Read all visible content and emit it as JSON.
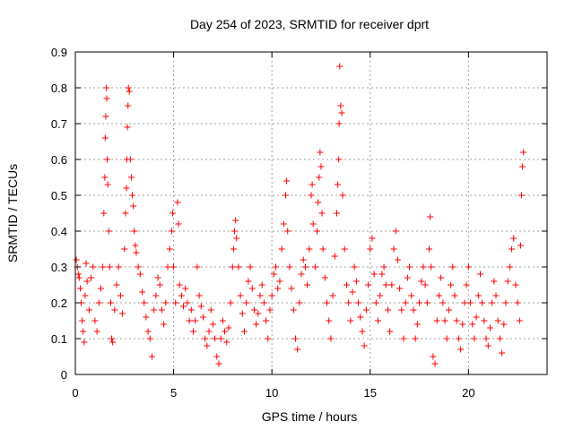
{
  "chart_data": {
    "type": "scatter",
    "title": "Day 254 of 2023, SRMTID for receiver dprt",
    "xlabel": "GPS time / hours",
    "ylabel": "SRMTID / TECUs",
    "xlim": [
      0,
      24
    ],
    "ylim": [
      0,
      0.9
    ],
    "x_ticks": [
      0,
      5,
      10,
      15,
      20
    ],
    "x_tick_labels": [
      "0",
      "5",
      "10",
      "15",
      "20"
    ],
    "y_ticks": [
      0,
      0.1,
      0.2,
      0.3,
      0.4,
      0.5,
      0.6,
      0.7,
      0.8,
      0.9
    ],
    "y_tick_labels": [
      "0",
      "0.1",
      "0.2",
      "0.3",
      "0.4",
      "0.5",
      "0.6",
      "0.7",
      "0.8",
      "0.9"
    ],
    "grid": true,
    "marker": "+",
    "color": "#ff0000",
    "series": [
      {
        "name": "SRMTID",
        "points": [
          [
            0.05,
            0.32
          ],
          [
            0.1,
            0.3
          ],
          [
            0.15,
            0.28
          ],
          [
            0.2,
            0.27
          ],
          [
            0.25,
            0.24
          ],
          [
            0.3,
            0.2
          ],
          [
            0.35,
            0.15
          ],
          [
            0.4,
            0.12
          ],
          [
            0.45,
            0.09
          ],
          [
            0.5,
            0.22
          ],
          [
            0.55,
            0.31
          ],
          [
            0.6,
            0.26
          ],
          [
            0.7,
            0.18
          ],
          [
            0.8,
            0.27
          ],
          [
            0.9,
            0.3
          ],
          [
            1.0,
            0.15
          ],
          [
            1.1,
            0.12
          ],
          [
            1.2,
            0.2
          ],
          [
            1.3,
            0.24
          ],
          [
            1.4,
            0.3
          ],
          [
            1.45,
            0.45
          ],
          [
            1.5,
            0.55
          ],
          [
            1.52,
            0.66
          ],
          [
            1.55,
            0.72
          ],
          [
            1.58,
            0.8
          ],
          [
            1.6,
            0.77
          ],
          [
            1.62,
            0.6
          ],
          [
            1.65,
            0.53
          ],
          [
            1.7,
            0.4
          ],
          [
            1.75,
            0.3
          ],
          [
            1.8,
            0.2
          ],
          [
            1.85,
            0.1
          ],
          [
            1.9,
            0.09
          ],
          [
            2.0,
            0.18
          ],
          [
            2.1,
            0.25
          ],
          [
            2.2,
            0.3
          ],
          [
            2.3,
            0.22
          ],
          [
            2.4,
            0.17
          ],
          [
            2.5,
            0.35
          ],
          [
            2.55,
            0.45
          ],
          [
            2.6,
            0.52
          ],
          [
            2.62,
            0.6
          ],
          [
            2.65,
            0.69
          ],
          [
            2.68,
            0.75
          ],
          [
            2.7,
            0.8
          ],
          [
            2.75,
            0.79
          ],
          [
            2.8,
            0.6
          ],
          [
            2.85,
            0.55
          ],
          [
            2.9,
            0.5
          ],
          [
            2.95,
            0.47
          ],
          [
            3.0,
            0.4
          ],
          [
            3.05,
            0.36
          ],
          [
            3.1,
            0.34
          ],
          [
            3.2,
            0.3
          ],
          [
            3.3,
            0.28
          ],
          [
            3.4,
            0.23
          ],
          [
            3.5,
            0.2
          ],
          [
            3.6,
            0.16
          ],
          [
            3.7,
            0.12
          ],
          [
            3.8,
            0.1
          ],
          [
            3.9,
            0.05
          ],
          [
            4.0,
            0.18
          ],
          [
            4.1,
            0.22
          ],
          [
            4.2,
            0.27
          ],
          [
            4.3,
            0.25
          ],
          [
            4.4,
            0.18
          ],
          [
            4.5,
            0.14
          ],
          [
            4.6,
            0.2
          ],
          [
            4.7,
            0.3
          ],
          [
            4.8,
            0.35
          ],
          [
            4.9,
            0.4
          ],
          [
            4.95,
            0.45
          ],
          [
            5.0,
            0.3
          ],
          [
            5.1,
            0.2
          ],
          [
            5.2,
            0.48
          ],
          [
            5.25,
            0.42
          ],
          [
            5.3,
            0.25
          ],
          [
            5.4,
            0.22
          ],
          [
            5.5,
            0.19
          ],
          [
            5.6,
            0.24
          ],
          [
            5.7,
            0.2
          ],
          [
            5.8,
            0.15
          ],
          [
            5.9,
            0.18
          ],
          [
            6.0,
            0.12
          ],
          [
            6.1,
            0.15
          ],
          [
            6.2,
            0.3
          ],
          [
            6.3,
            0.22
          ],
          [
            6.4,
            0.19
          ],
          [
            6.5,
            0.16
          ],
          [
            6.6,
            0.1
          ],
          [
            6.7,
            0.08
          ],
          [
            6.8,
            0.12
          ],
          [
            6.9,
            0.18
          ],
          [
            7.0,
            0.14
          ],
          [
            7.1,
            0.1
          ],
          [
            7.2,
            0.05
          ],
          [
            7.3,
            0.03
          ],
          [
            7.4,
            0.1
          ],
          [
            7.5,
            0.15
          ],
          [
            7.6,
            0.12
          ],
          [
            7.7,
            0.09
          ],
          [
            7.8,
            0.13
          ],
          [
            7.9,
            0.2
          ],
          [
            8.0,
            0.3
          ],
          [
            8.05,
            0.35
          ],
          [
            8.1,
            0.4
          ],
          [
            8.15,
            0.43
          ],
          [
            8.2,
            0.38
          ],
          [
            8.3,
            0.3
          ],
          [
            8.4,
            0.22
          ],
          [
            8.5,
            0.17
          ],
          [
            8.6,
            0.12
          ],
          [
            8.7,
            0.2
          ],
          [
            8.8,
            0.26
          ],
          [
            8.9,
            0.3
          ],
          [
            9.0,
            0.24
          ],
          [
            9.1,
            0.18
          ],
          [
            9.2,
            0.14
          ],
          [
            9.3,
            0.17
          ],
          [
            9.4,
            0.22
          ],
          [
            9.5,
            0.25
          ],
          [
            9.6,
            0.2
          ],
          [
            9.7,
            0.15
          ],
          [
            9.8,
            0.1
          ],
          [
            9.9,
            0.18
          ],
          [
            10.0,
            0.22
          ],
          [
            10.1,
            0.28
          ],
          [
            10.2,
            0.3
          ],
          [
            10.3,
            0.24
          ],
          [
            10.4,
            0.26
          ],
          [
            10.5,
            0.35
          ],
          [
            10.6,
            0.42
          ],
          [
            10.7,
            0.5
          ],
          [
            10.75,
            0.54
          ],
          [
            10.8,
            0.4
          ],
          [
            10.9,
            0.3
          ],
          [
            11.0,
            0.24
          ],
          [
            11.1,
            0.18
          ],
          [
            11.2,
            0.1
          ],
          [
            11.3,
            0.07
          ],
          [
            11.4,
            0.2
          ],
          [
            11.5,
            0.28
          ],
          [
            11.6,
            0.32
          ],
          [
            11.7,
            0.3
          ],
          [
            11.8,
            0.25
          ],
          [
            11.9,
            0.35
          ],
          [
            12.0,
            0.5
          ],
          [
            12.05,
            0.53
          ],
          [
            12.1,
            0.42
          ],
          [
            12.2,
            0.3
          ],
          [
            12.3,
            0.4
          ],
          [
            12.35,
            0.48
          ],
          [
            12.4,
            0.55
          ],
          [
            12.45,
            0.62
          ],
          [
            12.5,
            0.58
          ],
          [
            12.55,
            0.45
          ],
          [
            12.6,
            0.35
          ],
          [
            12.7,
            0.27
          ],
          [
            12.8,
            0.2
          ],
          [
            12.9,
            0.15
          ],
          [
            13.0,
            0.1
          ],
          [
            13.1,
            0.22
          ],
          [
            13.2,
            0.33
          ],
          [
            13.3,
            0.45
          ],
          [
            13.35,
            0.53
          ],
          [
            13.4,
            0.6
          ],
          [
            13.42,
            0.7
          ],
          [
            13.45,
            0.86
          ],
          [
            13.5,
            0.75
          ],
          [
            13.55,
            0.73
          ],
          [
            13.6,
            0.5
          ],
          [
            13.7,
            0.35
          ],
          [
            13.8,
            0.25
          ],
          [
            13.9,
            0.2
          ],
          [
            14.0,
            0.15
          ],
          [
            14.1,
            0.23
          ],
          [
            14.2,
            0.3
          ],
          [
            14.3,
            0.26
          ],
          [
            14.4,
            0.2
          ],
          [
            14.5,
            0.16
          ],
          [
            14.6,
            0.12
          ],
          [
            14.7,
            0.08
          ],
          [
            14.8,
            0.18
          ],
          [
            14.9,
            0.25
          ],
          [
            15.0,
            0.35
          ],
          [
            15.1,
            0.38
          ],
          [
            15.2,
            0.28
          ],
          [
            15.3,
            0.2
          ],
          [
            15.4,
            0.15
          ],
          [
            15.5,
            0.22
          ],
          [
            15.6,
            0.28
          ],
          [
            15.7,
            0.3
          ],
          [
            15.8,
            0.25
          ],
          [
            15.9,
            0.18
          ],
          [
            16.0,
            0.12
          ],
          [
            16.1,
            0.25
          ],
          [
            16.2,
            0.35
          ],
          [
            16.3,
            0.4
          ],
          [
            16.4,
            0.32
          ],
          [
            16.5,
            0.24
          ],
          [
            16.6,
            0.18
          ],
          [
            16.7,
            0.1
          ],
          [
            16.8,
            0.2
          ],
          [
            16.9,
            0.27
          ],
          [
            17.0,
            0.3
          ],
          [
            17.1,
            0.22
          ],
          [
            17.2,
            0.18
          ],
          [
            17.3,
            0.1
          ],
          [
            17.4,
            0.14
          ],
          [
            17.5,
            0.2
          ],
          [
            17.6,
            0.26
          ],
          [
            17.7,
            0.3
          ],
          [
            17.8,
            0.25
          ],
          [
            17.9,
            0.2
          ],
          [
            18.0,
            0.35
          ],
          [
            18.05,
            0.44
          ],
          [
            18.1,
            0.3
          ],
          [
            18.2,
            0.05
          ],
          [
            18.3,
            0.03
          ],
          [
            18.4,
            0.15
          ],
          [
            18.5,
            0.22
          ],
          [
            18.6,
            0.27
          ],
          [
            18.7,
            0.2
          ],
          [
            18.8,
            0.15
          ],
          [
            18.9,
            0.1
          ],
          [
            19.0,
            0.18
          ],
          [
            19.1,
            0.25
          ],
          [
            19.2,
            0.3
          ],
          [
            19.3,
            0.22
          ],
          [
            19.4,
            0.15
          ],
          [
            19.5,
            0.1
          ],
          [
            19.6,
            0.07
          ],
          [
            19.7,
            0.14
          ],
          [
            19.8,
            0.2
          ],
          [
            19.9,
            0.25
          ],
          [
            20.0,
            0.3
          ],
          [
            20.1,
            0.2
          ],
          [
            20.2,
            0.14
          ],
          [
            20.3,
            0.1
          ],
          [
            20.4,
            0.16
          ],
          [
            20.5,
            0.22
          ],
          [
            20.6,
            0.28
          ],
          [
            20.7,
            0.2
          ],
          [
            20.8,
            0.15
          ],
          [
            20.9,
            0.1
          ],
          [
            21.0,
            0.08
          ],
          [
            21.1,
            0.13
          ],
          [
            21.2,
            0.2
          ],
          [
            21.3,
            0.26
          ],
          [
            21.4,
            0.22
          ],
          [
            21.5,
            0.15
          ],
          [
            21.6,
            0.1
          ],
          [
            21.7,
            0.06
          ],
          [
            21.8,
            0.14
          ],
          [
            21.9,
            0.2
          ],
          [
            22.0,
            0.26
          ],
          [
            22.1,
            0.3
          ],
          [
            22.2,
            0.35
          ],
          [
            22.3,
            0.38
          ],
          [
            22.4,
            0.25
          ],
          [
            22.5,
            0.2
          ],
          [
            22.6,
            0.15
          ],
          [
            22.65,
            0.36
          ],
          [
            22.7,
            0.5
          ],
          [
            22.75,
            0.58
          ],
          [
            22.8,
            0.62
          ]
        ]
      }
    ]
  }
}
